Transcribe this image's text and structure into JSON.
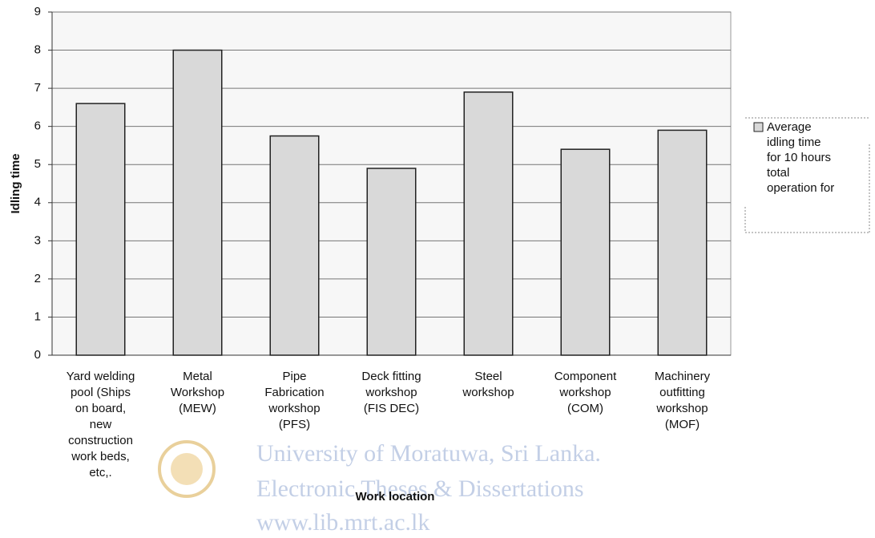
{
  "chart_data": {
    "type": "bar",
    "categories": [
      "Yard welding pool (Ships on board, new construction work beds, etc,.",
      "Metal Workshop (MEW)",
      "Pipe Fabrication workshop (PFS)",
      "Deck fitting workshop (FIS DEC)",
      "Steel workshop",
      "Component workshop (COM)",
      "Machinery outfitting workshop (MOF)"
    ],
    "series": [
      {
        "name": "Average idling time for 10 hours total operation for",
        "color": "#d9d9d9",
        "values": [
          6.6,
          8.0,
          5.75,
          4.9,
          6.9,
          5.4,
          5.9
        ]
      }
    ],
    "ylim": [
      0,
      9
    ],
    "yticks": [
      0,
      1,
      2,
      3,
      4,
      5,
      6,
      7,
      8,
      9
    ],
    "grid": true,
    "ylabel": "Idling time",
    "xlabel": "Work location",
    "legend": "right",
    "watermark": [
      "University of Moratuwa, Sri Lanka.",
      "Electronic Theses & Dissertations",
      "www.lib.mrt.ac.lk"
    ]
  }
}
